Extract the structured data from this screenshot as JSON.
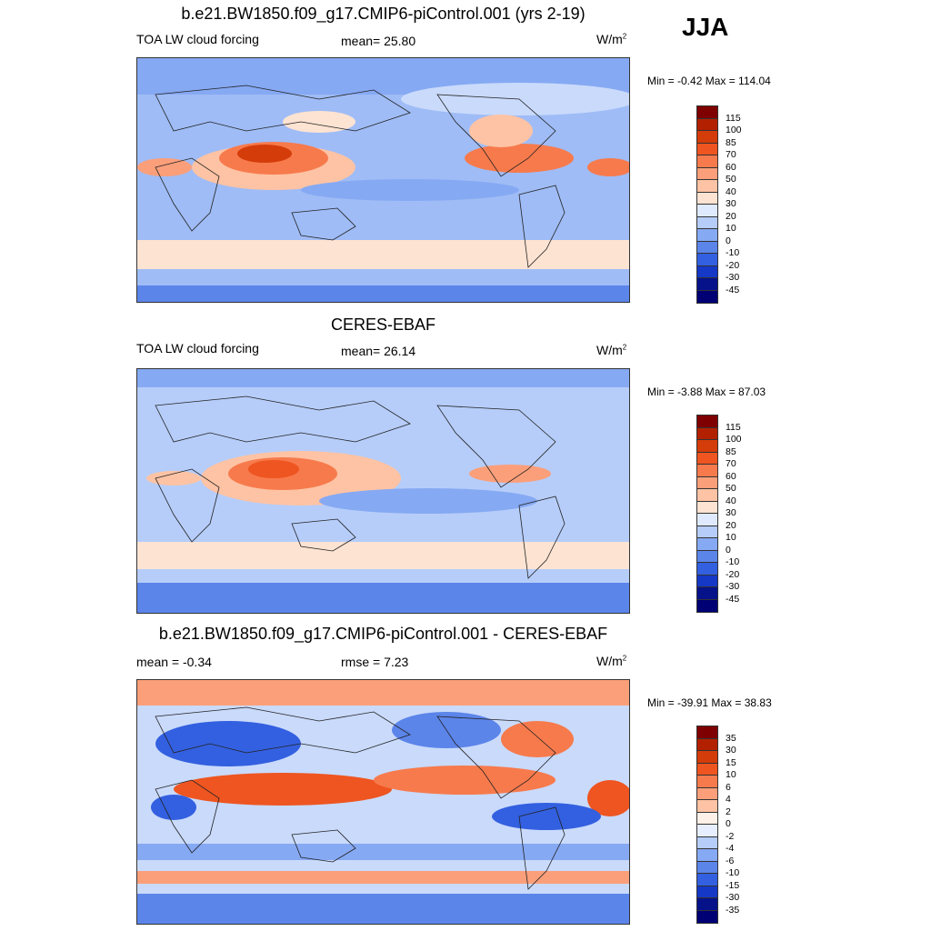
{
  "season": "JJA",
  "panels": [
    {
      "title": "b.e21.BW1850.f09_g17.CMIP6-piControl.001 (yrs 2-19)",
      "left_label": "TOA LW cloud forcing",
      "center_label": "mean=  25.80",
      "units_base": "W/m",
      "units_sup": "2",
      "minmax": "Min =  -0.42 Max = 114.04",
      "colorbar_labels": [
        "115",
        "100",
        "85",
        "70",
        "60",
        "50",
        "40",
        "30",
        "20",
        "10",
        "0",
        "-10",
        "-20",
        "-30",
        "-45"
      ],
      "colorbar_colors": [
        "#7f0000",
        "#b22000",
        "#d43c0a",
        "#ee5520",
        "#f77a4c",
        "#fb9f7a",
        "#fdc3a4",
        "#fde3d2",
        "#dfeaff",
        "#b6cdfa",
        "#86a9f3",
        "#5c85ea",
        "#3360e0",
        "#1538c6",
        "#05128a",
        "#000074"
      ]
    },
    {
      "title": "CERES-EBAF",
      "left_label": "TOA LW cloud forcing",
      "center_label": "mean=  26.14",
      "units_base": "W/m",
      "units_sup": "2",
      "minmax": "Min =  -3.88 Max =  87.03",
      "colorbar_labels": [
        "115",
        "100",
        "85",
        "70",
        "60",
        "50",
        "40",
        "30",
        "20",
        "10",
        "0",
        "-10",
        "-20",
        "-30",
        "-45"
      ],
      "colorbar_colors": [
        "#7f0000",
        "#b22000",
        "#d43c0a",
        "#ee5520",
        "#f77a4c",
        "#fb9f7a",
        "#fdc3a4",
        "#fde3d2",
        "#dfeaff",
        "#b6cdfa",
        "#86a9f3",
        "#5c85ea",
        "#3360e0",
        "#1538c6",
        "#05128a",
        "#000074"
      ]
    },
    {
      "title": "b.e21.BW1850.f09_g17.CMIP6-piControl.001 - CERES-EBAF",
      "left_label": "mean =  -0.34",
      "center_label": "rmse =   7.23",
      "units_base": "W/m",
      "units_sup": "2",
      "minmax": "Min = -39.91 Max =  38.83",
      "colorbar_labels": [
        "35",
        "30",
        "15",
        "10",
        "6",
        "4",
        "2",
        "0",
        "-2",
        "-4",
        "-6",
        "-10",
        "-15",
        "-30",
        "-35"
      ],
      "colorbar_colors": [
        "#7f0000",
        "#b22000",
        "#d43c0a",
        "#ee5520",
        "#f77a4c",
        "#fb9f7a",
        "#fdc3a4",
        "#fdf0e8",
        "#e6eeff",
        "#b6cdfa",
        "#86a9f3",
        "#5c85ea",
        "#3360e0",
        "#1538c6",
        "#05128a",
        "#000074"
      ]
    }
  ]
}
